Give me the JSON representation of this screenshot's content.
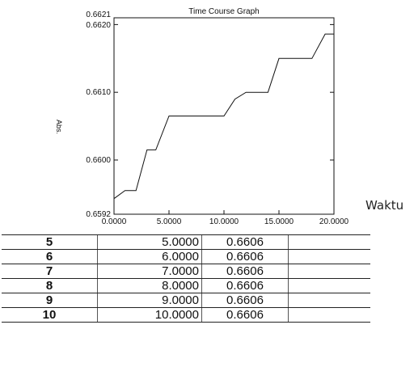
{
  "chart_data": {
    "type": "line",
    "title": "Time Course Graph",
    "ylabel": "Abs.",
    "xlabel": "",
    "xlim": [
      0,
      20
    ],
    "ylim": [
      0.6592,
      0.6621
    ],
    "xticks": [
      "0.0000",
      "5.0000",
      "10.0000",
      "15.0000",
      "20.0000"
    ],
    "xtick_values": [
      0,
      5,
      10,
      15,
      20
    ],
    "yticks": [
      "0.6592",
      "0.6600",
      "0.6610",
      "0.6620",
      "0.6621"
    ],
    "ytick_values": [
      0.6592,
      0.66,
      0.661,
      0.662,
      0.6621
    ],
    "grid": false,
    "series": [
      {
        "values": [
          [
            0.0,
            0.65943
          ],
          [
            1.0,
            0.65955
          ],
          [
            2.0,
            0.65955
          ],
          [
            3.0,
            0.66015
          ],
          [
            3.8,
            0.66015
          ],
          [
            5.0,
            0.66065
          ],
          [
            10.0,
            0.66065
          ],
          [
            11.0,
            0.6609
          ],
          [
            12.0,
            0.661
          ],
          [
            14.0,
            0.661
          ],
          [
            15.0,
            0.6615
          ],
          [
            18.0,
            0.6615
          ],
          [
            19.2,
            0.66186
          ],
          [
            20.0,
            0.66186
          ]
        ]
      }
    ]
  },
  "side_label": "Waktu",
  "table": {
    "rows": [
      {
        "idx": "5",
        "time": "5.0000",
        "abs": "0.6606"
      },
      {
        "idx": "6",
        "time": "6.0000",
        "abs": "0.6606"
      },
      {
        "idx": "7",
        "time": "7.0000",
        "abs": "0.6606"
      },
      {
        "idx": "8",
        "time": "8.0000",
        "abs": "0.6606"
      },
      {
        "idx": "9",
        "time": "9.0000",
        "abs": "0.6606"
      },
      {
        "idx": "10",
        "time": "10.0000",
        "abs": "0.6606"
      }
    ]
  }
}
